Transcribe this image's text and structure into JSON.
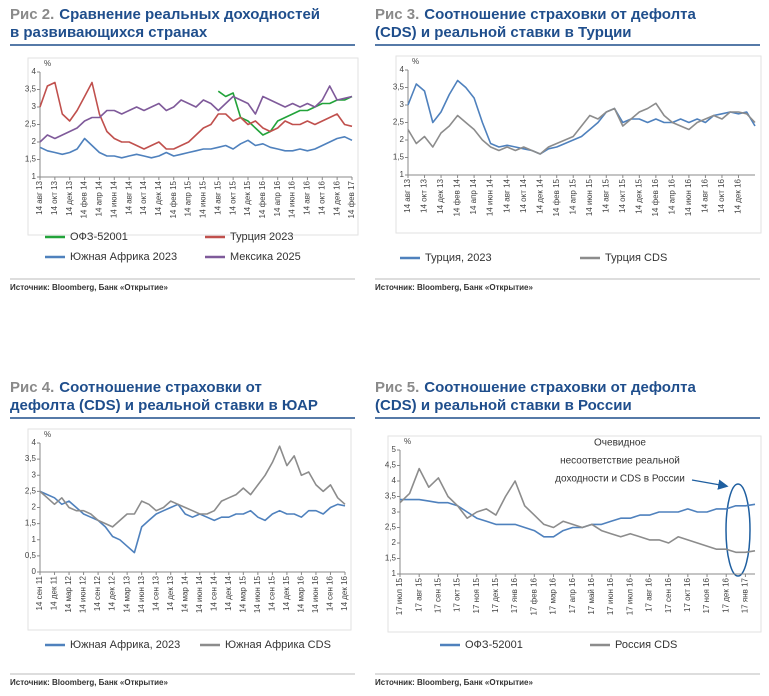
{
  "chart_data": [
    {
      "type": "line",
      "figure_label": "Рис 2.",
      "title": [
        "Сравнение реальных доходностей",
        "в развивающихся странах"
      ],
      "y_label": "%",
      "categories": [
        "14 авг 13",
        null,
        "14 окт 13",
        null,
        "14 дек 13",
        null,
        "14 фев 14",
        null,
        "14 апр 14",
        null,
        "14 июн 14",
        null,
        "14 авг 14",
        null,
        "14 окт 14",
        null,
        "14 дек 14",
        null,
        "14 фев 15",
        null,
        "14 апр 15",
        null,
        "14 июн 15",
        null,
        "14 авг 15",
        null,
        "14 окт 15",
        null,
        "14 дек 15",
        null,
        "14 фев 16",
        null,
        "14 апр 16",
        null,
        "14 июн 16",
        null,
        "14 авг 16",
        null,
        "14 окт 16",
        null,
        "14 дек 16",
        null,
        "14 фев 17"
      ],
      "ylim": [
        1,
        4
      ],
      "yticks": [
        1,
        {
          "value": 1.5,
          "label": "1,5"
        },
        2,
        {
          "value": 2.5,
          "label": "2,5"
        },
        3,
        {
          "value": 3.5,
          "label": "3,5"
        },
        4
      ],
      "grid": false,
      "series": [
        {
          "name": "ОФЗ-52001",
          "color": "#22a33a",
          "values": [
            null,
            null,
            null,
            null,
            null,
            null,
            null,
            null,
            null,
            null,
            null,
            null,
            null,
            null,
            null,
            null,
            null,
            null,
            null,
            null,
            null,
            null,
            null,
            null,
            3.45,
            3.3,
            3.4,
            2.7,
            2.6,
            2.4,
            2.2,
            2.3,
            2.6,
            2.7,
            2.8,
            2.9,
            2.9,
            3.0,
            3.1,
            3.1,
            3.2,
            3.2,
            3.3
          ]
        },
        {
          "name": "Турция 2023",
          "color": "#c0504d",
          "values": [
            3.0,
            3.6,
            3.7,
            2.8,
            2.6,
            2.9,
            3.3,
            3.7,
            2.8,
            2.3,
            2.1,
            2.0,
            2.0,
            1.9,
            1.8,
            1.9,
            2.0,
            1.8,
            1.8,
            1.9,
            2.0,
            2.2,
            2.4,
            2.5,
            2.8,
            2.8,
            2.6,
            2.7,
            2.5,
            2.6,
            2.4,
            2.3,
            2.4,
            2.6,
            2.5,
            2.5,
            2.6,
            2.5,
            2.6,
            2.7,
            2.8,
            2.5,
            2.45
          ]
        },
        {
          "name": "Южная Африка 2023",
          "color": "#4f81bd",
          "values": [
            1.85,
            1.75,
            1.7,
            1.65,
            1.7,
            1.8,
            2.1,
            1.9,
            1.7,
            1.6,
            1.6,
            1.55,
            1.6,
            1.65,
            1.6,
            1.55,
            1.6,
            1.7,
            1.6,
            1.65,
            1.7,
            1.75,
            1.8,
            1.8,
            1.85,
            1.9,
            1.8,
            1.95,
            2.05,
            1.9,
            1.95,
            1.85,
            1.8,
            1.75,
            1.75,
            1.8,
            1.75,
            1.8,
            1.9,
            2.0,
            2.1,
            2.15,
            2.05
          ]
        },
        {
          "name": "Мексика 2025",
          "color": "#7f5a9a",
          "values": [
            2.0,
            2.2,
            2.1,
            2.2,
            2.3,
            2.4,
            2.6,
            2.7,
            2.7,
            2.9,
            2.9,
            2.8,
            2.9,
            3.0,
            2.9,
            3.0,
            3.1,
            2.9,
            3.0,
            3.2,
            3.1,
            3.0,
            3.2,
            3.1,
            2.9,
            3.1,
            3.3,
            3.2,
            3.1,
            2.8,
            3.3,
            3.2,
            3.1,
            3.0,
            3.1,
            3.0,
            3.1,
            3.0,
            3.2,
            3.6,
            3.2,
            3.25,
            3.3
          ]
        }
      ],
      "source": "Источник: Bloomberg, Банк «Открытие»"
    },
    {
      "type": "line",
      "figure_label": "Рис 3.",
      "title": [
        "Соотношение страховки от дефолта",
        "(CDS) и реальной ставки в Турции"
      ],
      "y_label": "%",
      "categories": [
        "14 авг 13",
        null,
        "14 окт 13",
        null,
        "14 дек 13",
        null,
        "14 фев 14",
        null,
        "14 апр 14",
        null,
        "14 июн 14",
        null,
        "14 авг 14",
        null,
        "14 окт 14",
        null,
        "14 дек 14",
        null,
        "14 фев 15",
        null,
        "14 апр 15",
        null,
        "14 июн 15",
        null,
        "14 авг 15",
        null,
        "14 окт 15",
        null,
        "14 дек 15",
        null,
        "14 фев 16",
        null,
        "14 апр 16",
        null,
        "14 июн 16",
        null,
        "14 авг 16",
        null,
        "14 окт 16",
        null,
        "14 дек 16",
        null,
        null
      ],
      "ylim": [
        1,
        4
      ],
      "yticks": [
        1,
        {
          "value": 1.5,
          "label": "1,5"
        },
        2,
        {
          "value": 2.5,
          "label": "2,5"
        },
        3,
        {
          "value": 3.5,
          "label": "3,5"
        },
        4
      ],
      "grid": false,
      "series": [
        {
          "name": "Турция, 2023",
          "color": "#4f81bd",
          "values": [
            3.0,
            3.6,
            3.4,
            2.5,
            2.8,
            3.3,
            3.7,
            3.5,
            3.2,
            2.5,
            1.9,
            1.8,
            1.85,
            1.8,
            1.75,
            1.7,
            1.6,
            1.75,
            1.8,
            1.9,
            2.0,
            2.1,
            2.3,
            2.5,
            2.8,
            2.9,
            2.5,
            2.6,
            2.6,
            2.5,
            2.6,
            2.5,
            2.5,
            2.6,
            2.5,
            2.6,
            2.5,
            2.7,
            2.75,
            2.8,
            2.75,
            2.8,
            2.4
          ]
        },
        {
          "name": "Турция CDS",
          "color": "#8c8c8c",
          "values": [
            2.3,
            1.9,
            2.1,
            1.8,
            2.2,
            2.4,
            2.7,
            2.5,
            2.3,
            2.0,
            1.8,
            1.7,
            1.8,
            1.7,
            1.8,
            1.7,
            1.6,
            1.8,
            1.9,
            2.0,
            2.1,
            2.4,
            2.7,
            2.6,
            2.8,
            2.9,
            2.4,
            2.6,
            2.8,
            2.9,
            3.05,
            2.7,
            2.5,
            2.4,
            2.3,
            2.5,
            2.6,
            2.7,
            2.6,
            2.8,
            2.8,
            2.75,
            2.5
          ]
        }
      ],
      "source": "Источник: Bloomberg, Банк «Открытие»"
    },
    {
      "type": "line",
      "figure_label": "Рис 4.",
      "title": [
        "Соотношение страховки от",
        "дефолта (CDS) и реальной ставки в ЮАР"
      ],
      "y_label": "%",
      "categories": [
        "14 сен 11",
        null,
        "14 дек 11",
        null,
        "14 мар 12",
        null,
        "14 июн 12",
        null,
        "14 сен 12",
        null,
        "14 дек 12",
        null,
        "14 мар 13",
        null,
        "14 июн 13",
        null,
        "14 сен 13",
        null,
        "14 дек 13",
        null,
        "14 мар 14",
        null,
        "14 июн 14",
        null,
        "14 сен 14",
        null,
        "14 дек 14",
        null,
        "14 мар 15",
        null,
        "14 июн 15",
        null,
        "14 сен 15",
        null,
        "14 дек 15",
        null,
        "14 мар 16",
        null,
        "14 июн 16",
        null,
        "14 сен 16",
        null,
        "14 дек 16"
      ],
      "ylim": [
        0,
        4
      ],
      "yticks": [
        0,
        {
          "value": 0.5,
          "label": "0,5"
        },
        1,
        {
          "value": 1.5,
          "label": "1,5"
        },
        2,
        {
          "value": 2.5,
          "label": "2,5"
        },
        3,
        {
          "value": 3.5,
          "label": "3,5"
        },
        4
      ],
      "grid": false,
      "series": [
        {
          "name": "Южная Африка, 2023",
          "color": "#4f81bd",
          "values": [
            2.5,
            2.4,
            2.3,
            2.1,
            2.2,
            2.0,
            1.8,
            1.7,
            1.6,
            1.4,
            1.1,
            1.0,
            0.8,
            0.6,
            1.4,
            1.6,
            1.8,
            1.9,
            2.0,
            2.1,
            1.8,
            1.7,
            1.8,
            1.7,
            1.6,
            1.7,
            1.7,
            1.8,
            1.8,
            1.9,
            1.7,
            1.6,
            1.8,
            1.9,
            1.8,
            1.8,
            1.7,
            1.9,
            1.9,
            1.8,
            2.0,
            2.1,
            2.05
          ]
        },
        {
          "name": "Южная Африка CDS",
          "color": "#8c8c8c",
          "values": [
            2.5,
            2.3,
            2.1,
            2.3,
            2.0,
            1.9,
            1.9,
            1.8,
            1.6,
            1.5,
            1.4,
            1.6,
            1.8,
            1.8,
            2.2,
            2.1,
            1.9,
            2.0,
            2.2,
            2.1,
            2.0,
            1.9,
            1.8,
            1.8,
            1.9,
            2.2,
            2.3,
            2.4,
            2.6,
            2.4,
            2.7,
            3.0,
            3.4,
            3.9,
            3.3,
            3.6,
            3.0,
            3.1,
            2.7,
            2.5,
            2.7,
            2.3,
            2.1
          ]
        }
      ],
      "source": "Источник: Bloomberg, Банк «Открытие»"
    },
    {
      "type": "line",
      "figure_label": "Рис 5.",
      "title": [
        "Соотношение страховки от дефолта",
        "(CDS) и реальной ставки в России"
      ],
      "y_label": "%",
      "categories": [
        "17 июл 15",
        null,
        "17 авг 15",
        null,
        "17 сен 15",
        null,
        "17 окт 15",
        null,
        "17 ноя 15",
        null,
        "17 дек 15",
        null,
        "17 янв 16",
        null,
        "17 фев 16",
        null,
        "17 мар 16",
        null,
        "17 апр 16",
        null,
        "17 май 16",
        null,
        "17 июн 16",
        null,
        "17 июл 16",
        null,
        "17 авг 16",
        null,
        "17 сен 16",
        null,
        "17 окт 16",
        null,
        "17 ноя 16",
        null,
        "17 дек 16",
        null,
        "17 янв 17",
        null
      ],
      "ylim": [
        1,
        5
      ],
      "yticks": [
        1,
        {
          "value": 1.5,
          "label": "1,5"
        },
        2,
        {
          "value": 2.5,
          "label": "2,5"
        },
        3,
        {
          "value": 3.5,
          "label": "3,5"
        },
        4,
        {
          "value": 4.5,
          "label": "4,5"
        },
        5
      ],
      "grid": false,
      "series": [
        {
          "name": "ОФЗ-52001",
          "color": "#4f81bd",
          "values": [
            3.4,
            3.4,
            3.4,
            3.35,
            3.3,
            3.3,
            3.2,
            3.0,
            2.8,
            2.7,
            2.6,
            2.6,
            2.6,
            2.5,
            2.4,
            2.2,
            2.2,
            2.4,
            2.5,
            2.5,
            2.6,
            2.6,
            2.7,
            2.8,
            2.8,
            2.9,
            2.9,
            3.0,
            3.0,
            3.0,
            3.1,
            3.0,
            3.0,
            3.1,
            3.1,
            3.2,
            3.2,
            3.25
          ]
        },
        {
          "name": "Россия CDS",
          "color": "#8c8c8c",
          "values": [
            3.3,
            3.6,
            4.4,
            3.8,
            4.1,
            3.5,
            3.2,
            2.8,
            3.0,
            3.1,
            2.9,
            3.5,
            4.0,
            3.2,
            2.9,
            2.6,
            2.5,
            2.7,
            2.6,
            2.5,
            2.6,
            2.4,
            2.3,
            2.2,
            2.3,
            2.2,
            2.1,
            2.1,
            2.0,
            2.2,
            2.1,
            2.0,
            1.9,
            1.8,
            1.8,
            1.7,
            1.7,
            1.75
          ]
        }
      ],
      "annotation": [
        "Очевидное",
        "несоответствие реальной",
        "доходности и CDS в России"
      ],
      "source": "Источник: Bloomberg, Банк «Открытие»"
    }
  ]
}
